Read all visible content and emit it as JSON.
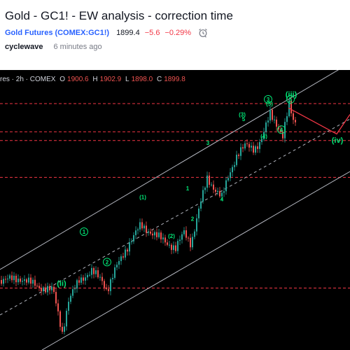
{
  "idea": {
    "title": "Gold - GC1! - EW analysis - correction time",
    "symbol_name": "Gold Futures",
    "symbol_code": "(COMEX:GC1!)",
    "last_price": "1899.4",
    "change": "−5.6",
    "change_pct": "−0.29%",
    "author": "cyclewave",
    "time_ago": "6 minutes ago",
    "alarm_icon": "alarm-clock-icon"
  },
  "legend": {
    "prefix": "res · 2h · COMEX",
    "open_key": "O",
    "open": "1900.6",
    "high_key": "H",
    "high": "1902.9",
    "low_key": "L",
    "low": "1898.0",
    "close_key": "C",
    "close": "1899.8"
  },
  "colors": {
    "up": "#26a69a",
    "down": "#ef5350",
    "wave_label": "#00e676",
    "projection": "#f23645",
    "channel": "#b2b5be",
    "hline": "#f23645",
    "background": "#000000"
  },
  "chart_data": {
    "type": "candlestick",
    "title": "Gold - GC1! - EW analysis - correction time",
    "timeframe": "2h",
    "exchange": "COMEX",
    "last_ohlc": {
      "open": 1900.6,
      "high": 1902.9,
      "low": 1898.0,
      "close": 1899.8
    },
    "horizontal_levels": [
      1900.0,
      1887.0,
      1883.0,
      1866.0,
      1815.0
    ],
    "wave_labels": [
      {
        "text": "(ii)",
        "style": "plain",
        "x": 88,
        "y": 1816
      },
      {
        "text": "1",
        "style": "circled",
        "x": 120,
        "y": 1840
      },
      {
        "text": "2",
        "style": "circled",
        "x": 153,
        "y": 1826
      },
      {
        "text": "(1)",
        "style": "plain",
        "x": 204,
        "y": 1856
      },
      {
        "text": "(2)",
        "style": "plain",
        "x": 245,
        "y": 1838
      },
      {
        "text": "1",
        "style": "plain",
        "x": 268,
        "y": 1860
      },
      {
        "text": "2",
        "style": "plain",
        "x": 275,
        "y": 1846
      },
      {
        "text": "3",
        "style": "plain",
        "x": 297,
        "y": 1881
      },
      {
        "text": "4",
        "style": "plain",
        "x": 317,
        "y": 1855
      },
      {
        "text": "(3)",
        "style": "plain",
        "x": 346,
        "y": 1894
      },
      {
        "text": "5",
        "style": "plain",
        "x": 348,
        "y": 1892
      },
      {
        "text": "(4)",
        "style": "plain",
        "x": 377,
        "y": 1884
      },
      {
        "text": "3",
        "style": "circled",
        "x": 383,
        "y": 1901
      },
      {
        "text": "(5)",
        "style": "plain",
        "x": 385,
        "y": 1899
      },
      {
        "text": "4",
        "style": "circled",
        "x": 402,
        "y": 1887
      },
      {
        "text": "(iii)",
        "style": "plain",
        "x": 416,
        "y": 1903
      },
      {
        "text": "5",
        "style": "circled",
        "x": 415,
        "y": 1901
      },
      {
        "text": "(iv)",
        "style": "plain",
        "x": 482,
        "y": 1882
      }
    ],
    "projection_path": [
      {
        "x": 412,
        "y": 1898
      },
      {
        "x": 481,
        "y": 1886
      },
      {
        "x": 500,
        "y": 1895
      }
    ]
  }
}
